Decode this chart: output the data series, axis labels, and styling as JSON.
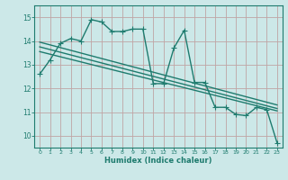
{
  "title": "",
  "xlabel": "Humidex (Indice chaleur)",
  "bg_color": "#cce8e8",
  "grid_color_major": "#aacfcf",
  "grid_color_minor": "#c0dede",
  "line_color": "#1e7b6e",
  "xlim": [
    -0.5,
    23.5
  ],
  "ylim": [
    9.5,
    15.5
  ],
  "yticks": [
    10,
    11,
    12,
    13,
    14,
    15
  ],
  "xticks": [
    0,
    1,
    2,
    3,
    4,
    5,
    6,
    7,
    8,
    9,
    10,
    11,
    12,
    13,
    14,
    15,
    16,
    17,
    18,
    19,
    20,
    21,
    22,
    23
  ],
  "series1_x": [
    0,
    1,
    2,
    3,
    4,
    5,
    6,
    7,
    8,
    9,
    10,
    11,
    12,
    13,
    14,
    15,
    16,
    17,
    18,
    19,
    20,
    21,
    22,
    23
  ],
  "series1_y": [
    12.6,
    13.2,
    13.9,
    14.1,
    14.0,
    14.9,
    14.8,
    14.4,
    14.4,
    14.5,
    14.5,
    12.2,
    12.2,
    13.7,
    14.45,
    12.25,
    12.25,
    11.2,
    11.2,
    10.9,
    10.85,
    11.2,
    11.1,
    9.7
  ],
  "trend1_x": [
    0,
    23
  ],
  "trend1_y": [
    13.95,
    11.3
  ],
  "trend2_x": [
    0,
    23
  ],
  "trend2_y": [
    13.55,
    11.05
  ],
  "trend3_x": [
    0,
    23
  ],
  "trend3_y": [
    13.75,
    11.15
  ],
  "marker_size": 2.5,
  "linewidth": 1.0
}
